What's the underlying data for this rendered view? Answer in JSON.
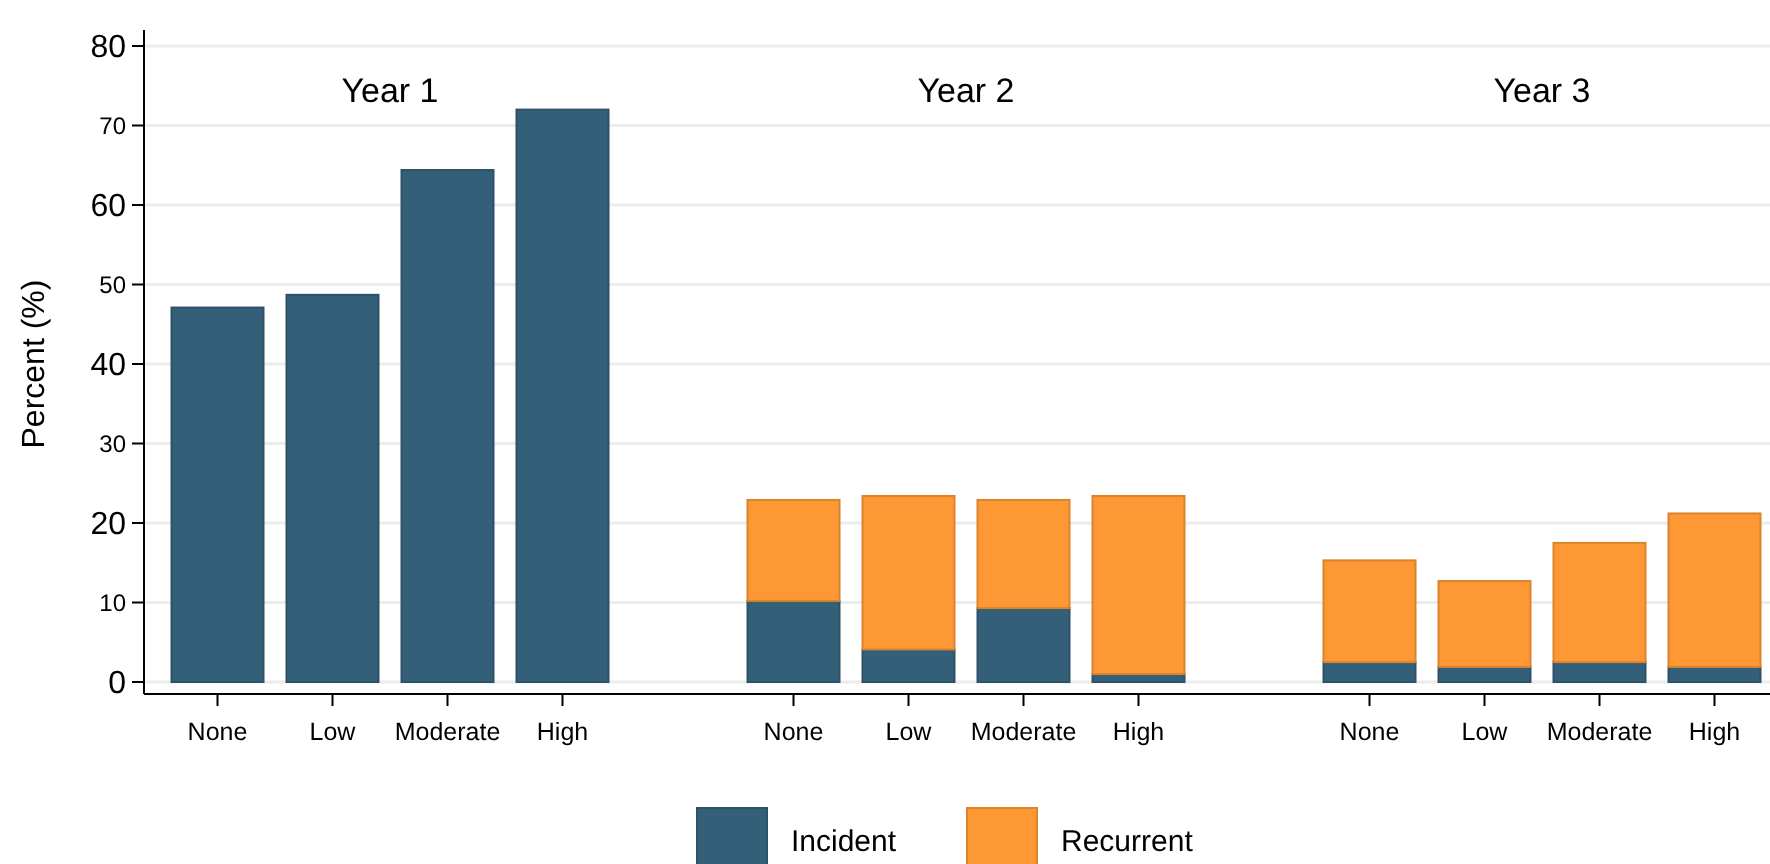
{
  "chart_data": [
    {
      "type": "bar",
      "title": "Year 1",
      "ylabel": "Percent (%)",
      "categories": [
        "None",
        "Low",
        "Moderate",
        "High"
      ],
      "stacked": true,
      "ylim": [
        0,
        80
      ],
      "yticks": [
        0,
        10,
        20,
        30,
        40,
        50,
        60,
        70,
        80
      ],
      "grid": "y",
      "legend": "bottom",
      "series": [
        {
          "name": "Incident",
          "color": "#345f78",
          "values": [
            47.1,
            48.7,
            64.4,
            72.0
          ]
        },
        {
          "name": "Recurrent",
          "color": "#fd9834",
          "values": [
            0,
            0,
            0,
            0
          ]
        }
      ]
    },
    {
      "type": "bar",
      "title": "Year 2",
      "categories": [
        "None",
        "Low",
        "Moderate",
        "High"
      ],
      "stacked": true,
      "ylim": [
        0,
        80
      ],
      "yticks": [
        0,
        10,
        20,
        30,
        40,
        50,
        60,
        70,
        80
      ],
      "grid": "y",
      "tick_labels": "x",
      "series": [
        {
          "color": "#345f78",
          "values": [
            10.2,
            4.1,
            9.3,
            1.0
          ]
        },
        {
          "color": "#fd9834",
          "values": [
            12.7,
            19.3,
            13.6,
            22.4
          ]
        }
      ]
    },
    {
      "type": "bar",
      "title": "Year 3",
      "categories": [
        "None",
        "Low",
        "Moderate",
        "High"
      ],
      "stacked": true,
      "ylim": [
        0,
        80
      ],
      "yticks": [
        0,
        10,
        20,
        30,
        40,
        50,
        60,
        70,
        80
      ],
      "grid": "y",
      "tick_labels": "x",
      "series": [
        {
          "color": "#345f78",
          "values": [
            2.5,
            1.9,
            2.5,
            1.9
          ]
        },
        {
          "color": "#fd9834",
          "values": [
            12.8,
            10.8,
            15.0,
            19.3
          ]
        }
      ]
    }
  ]
}
